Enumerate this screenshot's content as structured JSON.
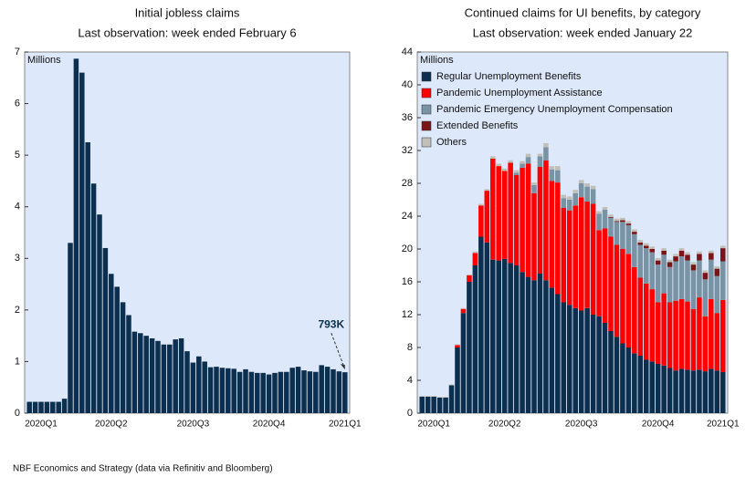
{
  "chart_data": [
    {
      "type": "bar",
      "title": "Initial jobless claims",
      "subtitle": "Last observation: week ended February 6",
      "y_unit": "Millions",
      "annotation": "793K",
      "categories": [
        null,
        null,
        "2020Q1",
        null,
        null,
        null,
        null,
        null,
        null,
        null,
        null,
        null,
        null,
        null,
        "2020Q2",
        null,
        null,
        null,
        null,
        null,
        null,
        null,
        null,
        null,
        null,
        null,
        null,
        null,
        "2020Q3",
        null,
        null,
        null,
        null,
        null,
        null,
        null,
        null,
        null,
        null,
        null,
        null,
        "2020Q4",
        null,
        null,
        null,
        null,
        null,
        null,
        null,
        null,
        null,
        null,
        null,
        null,
        "2021Q1"
      ],
      "values": [
        0.22,
        0.22,
        0.22,
        0.22,
        0.22,
        0.22,
        0.28,
        3.3,
        6.87,
        6.6,
        5.25,
        4.45,
        3.85,
        3.2,
        2.7,
        2.45,
        2.15,
        1.9,
        1.58,
        1.55,
        1.5,
        1.45,
        1.4,
        1.33,
        1.33,
        1.43,
        1.45,
        1.2,
        0.98,
        1.1,
        1.0,
        0.89,
        0.9,
        0.88,
        0.87,
        0.86,
        0.8,
        0.85,
        0.8,
        0.78,
        0.78,
        0.75,
        0.78,
        0.8,
        0.8,
        0.88,
        0.9,
        0.83,
        0.81,
        0.8,
        0.93,
        0.9,
        0.85,
        0.81,
        0.793
      ],
      "color": "#0d2f4f",
      "ylim": [
        0,
        7
      ],
      "yticks": [
        0,
        1,
        2,
        3,
        4,
        5,
        6,
        7
      ],
      "grid": false
    },
    {
      "type": "stacked_bar",
      "title": "Continued claims for UI benefits, by category",
      "subtitle": "Last observation: week ended January 22",
      "y_unit": "Millions",
      "legend": "top-left",
      "categories": [
        null,
        null,
        "2020Q1",
        null,
        null,
        null,
        null,
        null,
        null,
        null,
        null,
        null,
        null,
        null,
        "2020Q2",
        null,
        null,
        null,
        null,
        null,
        null,
        null,
        null,
        null,
        null,
        null,
        null,
        "2020Q3",
        null,
        null,
        null,
        null,
        null,
        null,
        null,
        null,
        null,
        null,
        null,
        null,
        "2020Q4",
        null,
        null,
        null,
        null,
        null,
        null,
        null,
        null,
        null,
        null,
        "2021Q1"
      ],
      "series": [
        {
          "name": "Regular Unemployment Benefits",
          "color": "#0d2f4f",
          "values": [
            2.0,
            2.0,
            2.0,
            1.9,
            1.9,
            3.4,
            8.0,
            12.2,
            16.0,
            18.0,
            21.5,
            20.8,
            18.7,
            18.6,
            18.8,
            18.3,
            18.0,
            17.2,
            16.6,
            16.2,
            17.0,
            16.2,
            15.3,
            14.5,
            13.5,
            13.2,
            12.8,
            12.5,
            12.8,
            12.0,
            11.8,
            11.0,
            10.0,
            9.3,
            8.5,
            8.0,
            7.3,
            7.0,
            6.5,
            6.3,
            6.0,
            5.8,
            5.5,
            5.2,
            5.4,
            5.3,
            5.2,
            5.3,
            5.1,
            5.4,
            5.2,
            5.0
          ]
        },
        {
          "name": "Pandemic Unemployment Assistance",
          "color": "#ff0000",
          "values": [
            0,
            0,
            0,
            0,
            0,
            0,
            0.3,
            0.5,
            0.8,
            1.5,
            3.8,
            6.3,
            12.3,
            11.5,
            10.7,
            12.2,
            11.0,
            12.7,
            13.8,
            10.6,
            13.0,
            14.6,
            13.0,
            13.6,
            11.5,
            11.5,
            12.5,
            13.8,
            13.0,
            13.5,
            10.5,
            11.5,
            11.5,
            11.2,
            11.5,
            11.4,
            10.5,
            9.5,
            9.3,
            8.8,
            7.5,
            8.8,
            8.0,
            8.5,
            8.5,
            8.3,
            7.5,
            8.8,
            6.7,
            8.5,
            7.0,
            8.8
          ]
        },
        {
          "name": "Pandemic Emergency Unemployment Compensation",
          "color": "#7893a3",
          "values": [
            0,
            0,
            0,
            0,
            0,
            0,
            0,
            0,
            0,
            0,
            0,
            0,
            0,
            0,
            0,
            0,
            0.3,
            0.5,
            0.8,
            1.0,
            1.3,
            1.6,
            1.4,
            1.5,
            1.2,
            1.3,
            1.5,
            1.7,
            1.8,
            1.8,
            2.0,
            2.3,
            2.3,
            2.8,
            3.3,
            3.5,
            4.0,
            4.0,
            4.3,
            4.5,
            4.6,
            4.7,
            4.3,
            4.8,
            5.2,
            5.0,
            4.7,
            4.5,
            4.5,
            4.8,
            4.5,
            4.7
          ]
        },
        {
          "name": "Extended Benefits",
          "color": "#7b1416",
          "values": [
            0,
            0,
            0,
            0,
            0,
            0,
            0,
            0,
            0,
            0,
            0,
            0,
            0,
            0,
            0,
            0,
            0,
            0,
            0,
            0,
            0,
            0,
            0,
            0,
            0,
            0,
            0,
            0,
            0,
            0,
            0,
            0,
            0.1,
            0.1,
            0.2,
            0.2,
            0.3,
            0.3,
            0.3,
            0.4,
            0.5,
            0.5,
            0.6,
            0.6,
            0.7,
            0.7,
            0.7,
            0.8,
            0.8,
            0.8,
            0.9,
            1.6
          ]
        },
        {
          "name": "Others",
          "color": "#c0c0b8",
          "values": [
            0.1,
            0.1,
            0.1,
            0.1,
            0.1,
            0.1,
            0.1,
            0.1,
            0.1,
            0.2,
            0.2,
            0.2,
            0.3,
            0.3,
            0.3,
            0.3,
            0.3,
            0.3,
            0.4,
            0.3,
            0.3,
            0.5,
            0.4,
            0.5,
            0.4,
            0.4,
            0.4,
            0.4,
            0.4,
            0.4,
            0.3,
            0.3,
            0.3,
            0.3,
            0.3,
            0.3,
            0.3,
            0.3,
            0.3,
            0.3,
            0.3,
            0.3,
            0.3,
            0.3,
            0.3,
            0.3,
            0.3,
            0.3,
            0.3,
            0.3,
            0.3,
            0.3
          ]
        }
      ],
      "ylim": [
        0,
        44
      ],
      "yticks": [
        0,
        4,
        8,
        12,
        16,
        20,
        24,
        28,
        32,
        36,
        40,
        44
      ],
      "grid": false
    },
    {
      "type": "note",
      "footnote": "NBF Economics and Strategy (data via Refinitiv and Bloomberg)"
    }
  ]
}
